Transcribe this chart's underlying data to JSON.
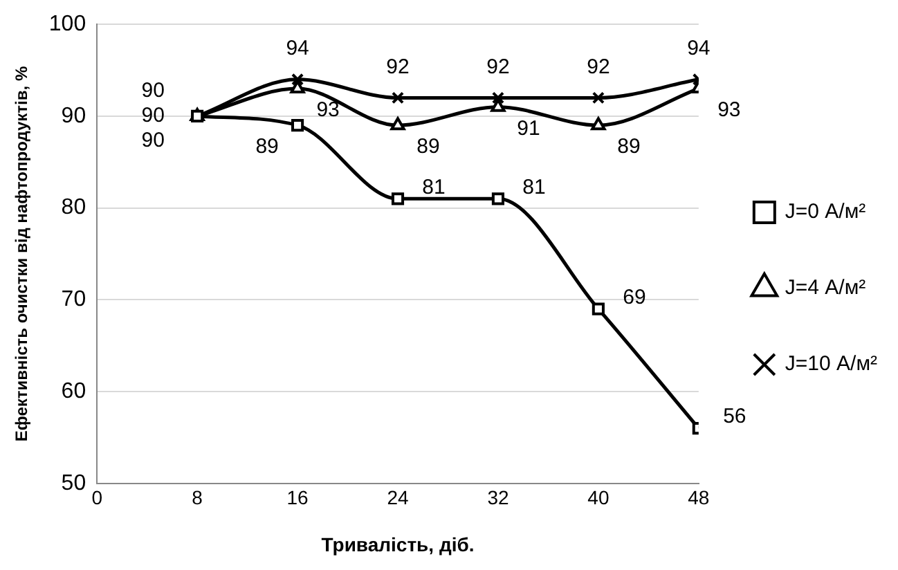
{
  "chart_data": {
    "type": "line",
    "xlabel": "Тривалість, діб.",
    "ylabel": "Ефективність очистки від нафтопродуктів, %",
    "x": [
      8,
      16,
      24,
      32,
      40,
      48
    ],
    "xlim": [
      0,
      48
    ],
    "xticks": [
      0,
      8,
      16,
      24,
      32,
      40,
      48
    ],
    "ylim": [
      50,
      100
    ],
    "yticks": [
      50,
      60,
      70,
      80,
      90,
      100
    ],
    "grid": "y",
    "legend": "right",
    "data_labels": true,
    "series": [
      {
        "name": "J=0 А/м²",
        "color": "#000000",
        "marker": "square",
        "values": [
          90,
          89,
          81,
          81,
          69,
          56
        ]
      },
      {
        "name": "J=4 А/м²",
        "color": "#000000",
        "marker": "triangle",
        "values": [
          90,
          93,
          89,
          91,
          89,
          93
        ]
      },
      {
        "name": "J=10 А/м²",
        "color": "#000000",
        "marker": "cross",
        "values": [
          90,
          94,
          92,
          92,
          92,
          94
        ]
      }
    ]
  }
}
